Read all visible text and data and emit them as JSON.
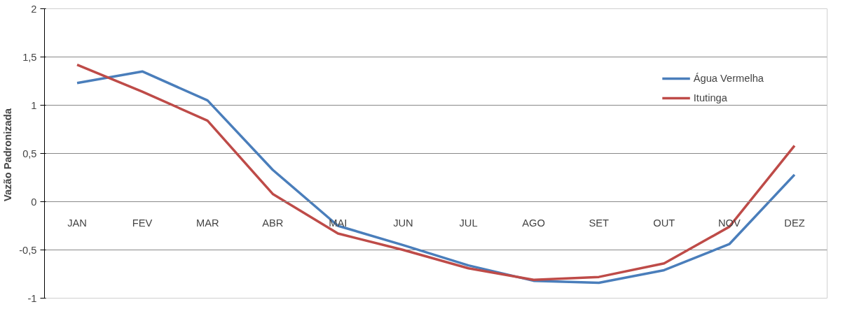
{
  "chart_data": {
    "type": "line",
    "ylabel": "Vazão  Padronizada",
    "categories": [
      "JAN",
      "FEV",
      "MAR",
      "ABR",
      "MAI",
      "JUN",
      "JUL",
      "AGO",
      "SET",
      "OUT",
      "NOV",
      "DEZ"
    ],
    "series": [
      {
        "name": "Água Vermelha",
        "color": "#4a7ebb",
        "values": [
          1.23,
          1.35,
          1.05,
          0.33,
          -0.25,
          -0.45,
          -0.66,
          -0.82,
          -0.84,
          -0.71,
          -0.44,
          0.28
        ]
      },
      {
        "name": "Itutinga",
        "color": "#be4b48",
        "values": [
          1.42,
          1.14,
          0.84,
          0.08,
          -0.33,
          -0.5,
          -0.69,
          -0.81,
          -0.78,
          -0.64,
          -0.26,
          0.58
        ]
      }
    ],
    "ylim": [
      -1,
      2
    ],
    "yticks": [
      -1,
      {
        "value": -0.5,
        "label": "-0,5"
      },
      0,
      {
        "value": 0.5,
        "label": "0,5"
      },
      1,
      {
        "value": 1.5,
        "label": "1,5"
      },
      2
    ],
    "grid": "y",
    "legend": "top right",
    "marker": "none",
    "line_style": "solid"
  }
}
